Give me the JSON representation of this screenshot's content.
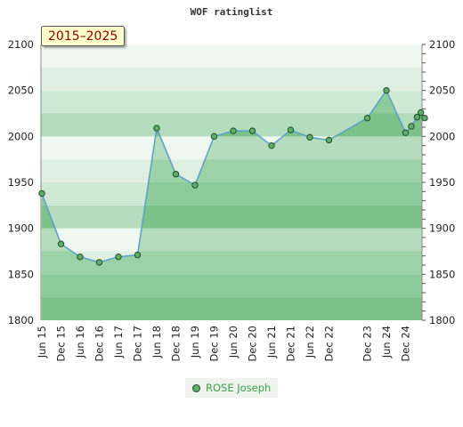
{
  "header": {
    "title": "WOF ratinglist"
  },
  "badge": {
    "label": "2015–2025"
  },
  "legend": {
    "label": "ROSE Joseph"
  },
  "colors": {
    "line": "#5aa0c8",
    "marker": "#5fae6a",
    "fill": "#6fbf80"
  },
  "chart_data": {
    "type": "area",
    "title": "WOF ratinglist",
    "xlabel": "",
    "ylabel": "",
    "ylim": [
      1800,
      2100
    ],
    "yticks": [
      1800,
      1850,
      1900,
      1950,
      2000,
      2050,
      2100
    ],
    "grid": true,
    "legend": "bottom-center",
    "x_categories": [
      "Jun 15",
      "Dec 15",
      "Jun 16",
      "Dec 16",
      "Jun 17",
      "Dec 17",
      "Jun 18",
      "Dec 18",
      "Jun 19",
      "Dec 19",
      "Jun 20",
      "Dec 20",
      "Jun 21",
      "Dec 21",
      "Jun 22",
      "Dec 22",
      "Dec 23",
      "Jun 24",
      "Dec 24"
    ],
    "x_label_index": [
      0,
      1,
      2,
      3,
      4,
      5,
      6,
      7,
      8,
      9,
      10,
      11,
      12,
      13,
      14,
      15,
      17,
      18,
      19
    ],
    "series": [
      {
        "name": "ROSE Joseph",
        "x": [
          0,
          1,
          2,
          3,
          4,
          5,
          6,
          7,
          8,
          9,
          10,
          11,
          12,
          13,
          14,
          15,
          17,
          18,
          19,
          19.3,
          19.6,
          19.8,
          20
        ],
        "values": [
          1938,
          1883,
          1869,
          1863,
          1869,
          1871,
          2009,
          1959,
          1947,
          2000,
          2006,
          2006,
          1990,
          2007,
          1999,
          1996,
          2020,
          2050,
          2004,
          2011,
          2021,
          2026,
          2020
        ]
      }
    ]
  }
}
